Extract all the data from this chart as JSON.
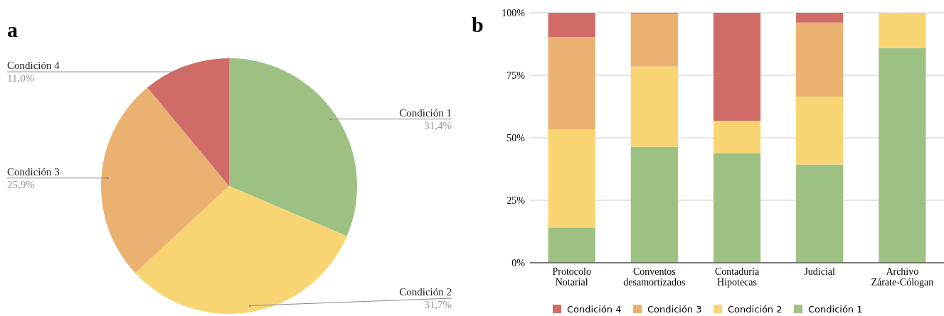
{
  "chart_data": [
    {
      "type": "pie",
      "title": "a",
      "categories": [
        "Condición 1",
        "Condición 2",
        "Condición 3",
        "Condición 4"
      ],
      "values": [
        31.4,
        31.7,
        25.9,
        11.0
      ],
      "value_labels": [
        "31,4%",
        "31,7%",
        "25,9%",
        "11,0%"
      ],
      "colors": [
        "#9dc183",
        "#f8d572",
        "#eab171",
        "#d06b68"
      ]
    },
    {
      "type": "bar",
      "title": "b",
      "stacked": true,
      "categories": [
        "Protocolo Notarial",
        "Conventos desamortizados",
        "Contaduría Hipotecas",
        "Judicial",
        "Archivo Zárate-Cólogan"
      ],
      "series": [
        {
          "name": "Condición 1",
          "color": "#9dc183",
          "values": [
            14.1,
            46.4,
            43.9,
            39.3,
            85.9
          ]
        },
        {
          "name": "Condición 2",
          "color": "#f8d572",
          "values": [
            39.2,
            32.1,
            12.9,
            27.2,
            14.1
          ]
        },
        {
          "name": "Condición 3",
          "color": "#eab171",
          "values": [
            37,
            21.2,
            0,
            29.6,
            0
          ]
        },
        {
          "name": "Condición 4",
          "color": "#d06b68",
          "values": [
            9.7,
            0.3,
            43.2,
            3.9,
            0
          ]
        }
      ],
      "ylim": [
        0,
        100
      ],
      "yticks": [
        {
          "value": 0,
          "label": "0%"
        },
        {
          "value": 25,
          "label": "25%"
        },
        {
          "value": 50,
          "label": "50%"
        },
        {
          "value": 75,
          "label": "75%"
        },
        {
          "value": 100,
          "label": "100%"
        }
      ],
      "grid": "y",
      "legend": "bottom"
    }
  ]
}
